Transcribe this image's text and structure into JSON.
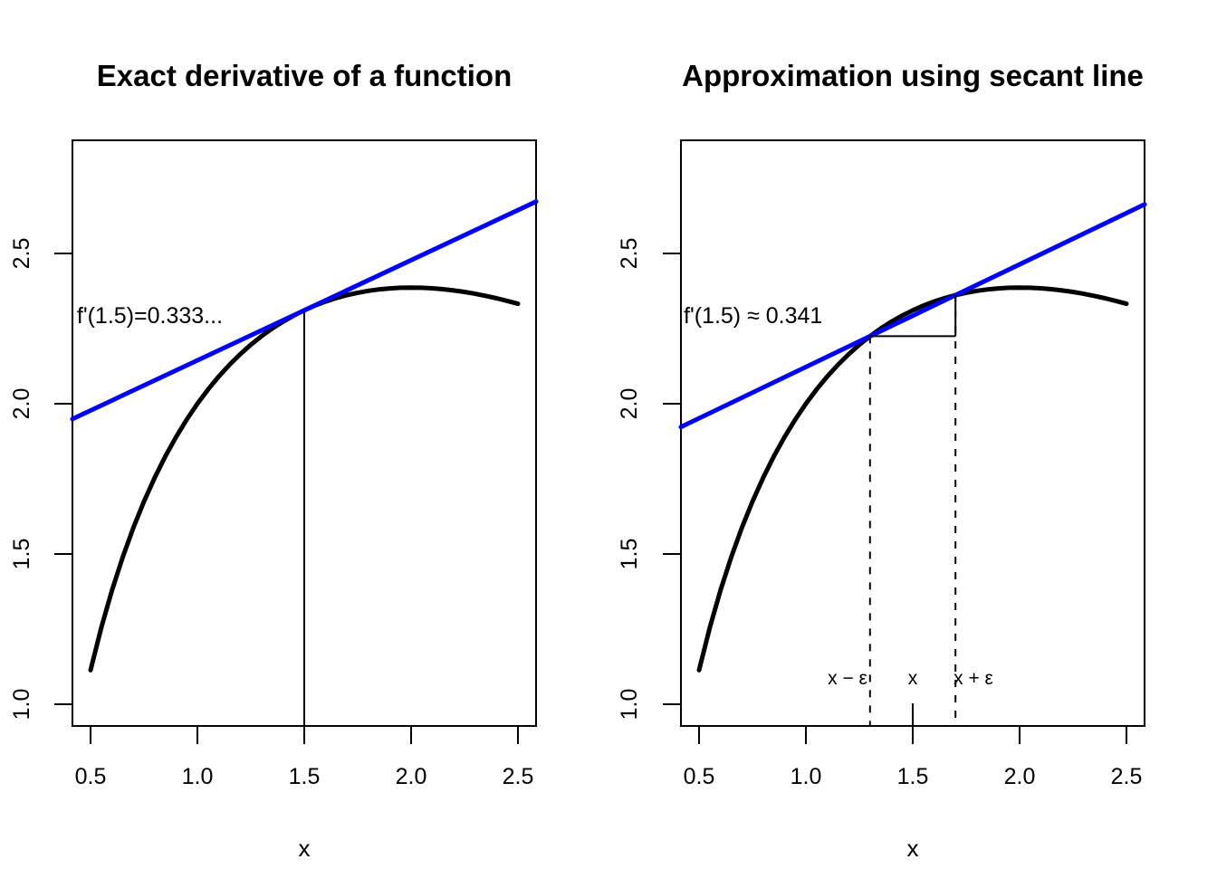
{
  "page": {
    "background": "#ffffff"
  },
  "colors": {
    "curve": "#000000",
    "line": "#0000ff",
    "axis": "#000000"
  },
  "chart_data": [
    {
      "type": "line",
      "title": "Exact derivative of a function",
      "xlabel": "x",
      "xlim": [
        0.415,
        2.585
      ],
      "ylim": [
        0.928,
        2.876
      ],
      "x_ticks": [
        0.5,
        1.0,
        1.5,
        2.0,
        2.5
      ],
      "x_tick_labels": [
        "0.5",
        "1.0",
        "1.5",
        "2.0",
        "2.5"
      ],
      "y_ticks": [
        1.0,
        1.5,
        2.0,
        2.5
      ],
      "y_tick_labels": [
        "1.0",
        "1.5",
        "2.0",
        "2.5"
      ],
      "function": "f(x) = 2*ln(x) - x + 3",
      "annotation": {
        "text": "f'(1.5)=0.333...",
        "color": "#0000ff",
        "x": 0.436,
        "y": 2.268
      },
      "curve": {
        "color": "#000000",
        "x": [
          0.5,
          0.55,
          0.6,
          0.65,
          0.7,
          0.75,
          0.8,
          0.85,
          0.9,
          0.95,
          1.0,
          1.05,
          1.1,
          1.15,
          1.2,
          1.25,
          1.3,
          1.35,
          1.4,
          1.45,
          1.5,
          1.55,
          1.6,
          1.65,
          1.7,
          1.75,
          1.8,
          1.85,
          1.9,
          1.95,
          2.0,
          2.05,
          2.1,
          2.15,
          2.2,
          2.25,
          2.3,
          2.35,
          2.4,
          2.45,
          2.5
        ],
        "y": [
          1.1137,
          1.2543,
          1.3783,
          1.4884,
          1.5867,
          1.6746,
          1.7537,
          1.825,
          1.8893,
          1.9474,
          2.0,
          2.0476,
          2.0906,
          2.1295,
          2.1646,
          2.1963,
          2.2247,
          2.2502,
          2.2729,
          2.2931,
          2.3109,
          2.3265,
          2.34,
          2.3516,
          2.3613,
          2.3692,
          2.3756,
          2.3804,
          2.3837,
          2.3857,
          2.3863,
          2.3857,
          2.3839,
          2.3809,
          2.3769,
          2.3719,
          2.3658,
          2.3588,
          2.3509,
          2.3422,
          2.3326
        ]
      },
      "tangent_line": {
        "color": "#0000ff",
        "slope": 0.3333,
        "point_x": 1.5,
        "point_y": 2.3109,
        "x1": 0.415,
        "y1": 1.9492,
        "x2": 2.585,
        "y2": 2.6726
      },
      "vertical_line": {
        "x": 1.5,
        "y_top": 2.3109,
        "y_bottom": 0.928
      }
    },
    {
      "type": "line",
      "title": "Approximation using secant line",
      "xlabel": "x",
      "xlim": [
        0.415,
        2.585
      ],
      "ylim": [
        0.928,
        2.876
      ],
      "x_ticks": [
        0.5,
        1.0,
        1.5,
        2.0,
        2.5
      ],
      "x_tick_labels": [
        "0.5",
        "1.0",
        "1.5",
        "2.0",
        "2.5"
      ],
      "y_ticks": [
        1.0,
        1.5,
        2.0,
        2.5
      ],
      "y_tick_labels": [
        "1.0",
        "1.5",
        "2.0",
        "2.5"
      ],
      "function": "f(x) = 2*ln(x) - x + 3",
      "epsilon": 0.2,
      "annotation": {
        "text": "f'(1.5) ≈ 0.341",
        "color": "#0000ff",
        "x": 0.428,
        "y": 2.268
      },
      "curve": {
        "color": "#000000",
        "x": [
          0.5,
          0.55,
          0.6,
          0.65,
          0.7,
          0.75,
          0.8,
          0.85,
          0.9,
          0.95,
          1.0,
          1.05,
          1.1,
          1.15,
          1.2,
          1.25,
          1.3,
          1.35,
          1.4,
          1.45,
          1.5,
          1.55,
          1.6,
          1.65,
          1.7,
          1.75,
          1.8,
          1.85,
          1.9,
          1.95,
          2.0,
          2.05,
          2.1,
          2.15,
          2.2,
          2.25,
          2.3,
          2.35,
          2.4,
          2.45,
          2.5
        ],
        "y": [
          1.1137,
          1.2543,
          1.3783,
          1.4884,
          1.5867,
          1.6746,
          1.7537,
          1.825,
          1.8893,
          1.9474,
          2.0,
          2.0476,
          2.0906,
          2.1295,
          2.1646,
          2.1963,
          2.2247,
          2.2502,
          2.2729,
          2.2931,
          2.3109,
          2.3265,
          2.34,
          2.3516,
          2.3613,
          2.3692,
          2.3756,
          2.3804,
          2.3837,
          2.3857,
          2.3863,
          2.3857,
          2.3839,
          2.3809,
          2.3769,
          2.3719,
          2.3658,
          2.3588,
          2.3509,
          2.3422,
          2.3326
        ]
      },
      "secant_line": {
        "color": "#0000ff",
        "slope": 0.3413,
        "x1": 0.415,
        "y1": 1.9226,
        "x2": 2.585,
        "y2": 2.6633
      },
      "secant_points": [
        {
          "x": 1.3,
          "y": 2.2247
        },
        {
          "x": 1.7,
          "y": 2.3613
        }
      ],
      "dashed_lines": [
        {
          "x": 1.3,
          "y_top": 2.2247,
          "y_bottom": 0.928
        },
        {
          "x": 1.7,
          "y_top": 2.3613,
          "y_bottom": 0.928
        }
      ],
      "triangle": {
        "horizontal": {
          "x1": 1.3,
          "x2": 1.7,
          "y": 2.2247
        },
        "vertical": {
          "x": 1.7,
          "y1": 2.3613,
          "y2": 2.2247
        }
      },
      "center_tick": {
        "x": 1.5
      },
      "point_labels": [
        {
          "text": "x − ε",
          "x": 1.195,
          "y": 1.066
        },
        {
          "text": "x",
          "x": 1.5,
          "y": 1.066
        },
        {
          "text": "x + ε",
          "x": 1.784,
          "y": 1.066
        }
      ]
    }
  ]
}
